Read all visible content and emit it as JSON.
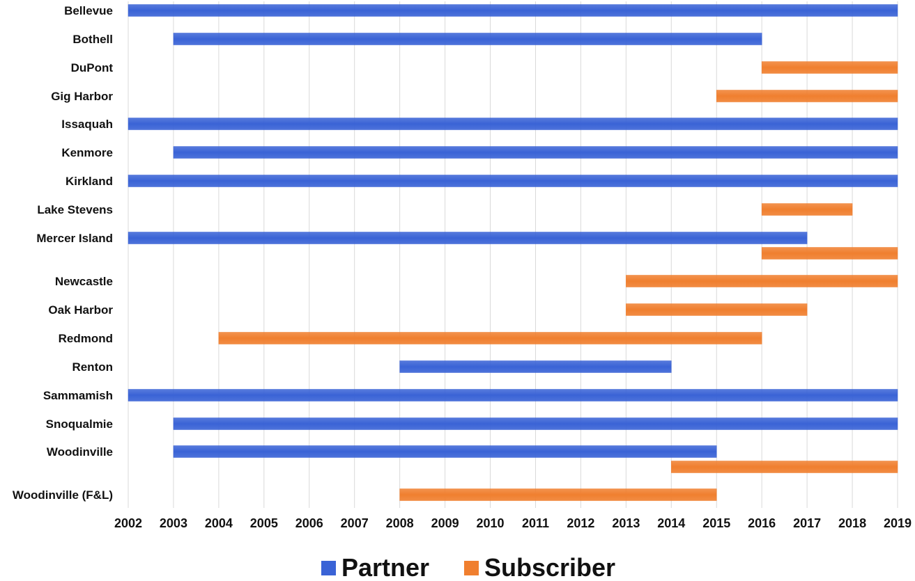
{
  "chart_data": {
    "type": "bar",
    "orientation": "horizontal-timeline",
    "xlim": [
      2002,
      2019
    ],
    "grid": true,
    "legend_position": "bottom-center",
    "categories": [
      "Bellevue",
      "Bothell",
      "DuPont",
      "Gig Harbor",
      "Issaquah",
      "Kenmore",
      "Kirkland",
      "Lake Stevens",
      "Mercer Island",
      "Newcastle",
      "Oak Harbor",
      "Redmond",
      "Renton",
      "Sammamish",
      "Snoqualmie",
      "Woodinville",
      "Woodinville (F&L)"
    ],
    "x_ticks": [
      "2002",
      "2003",
      "2004",
      "2005",
      "2006",
      "2007",
      "2008",
      "2009",
      "2010",
      "2011",
      "2012",
      "2013",
      "2014",
      "2015",
      "2016",
      "2017",
      "2018",
      "2019"
    ],
    "series": [
      {
        "name": "Partner",
        "color": "#3a63d6",
        "segments": [
          {
            "category": "Bellevue",
            "start": 2002,
            "end": 2019
          },
          {
            "category": "Bothell",
            "start": 2003,
            "end": 2016
          },
          {
            "category": "Issaquah",
            "start": 2002,
            "end": 2019
          },
          {
            "category": "Kenmore",
            "start": 2003,
            "end": 2019
          },
          {
            "category": "Kirkland",
            "start": 2002,
            "end": 2019
          },
          {
            "category": "Mercer Island",
            "start": 2002,
            "end": 2017
          },
          {
            "category": "Renton",
            "start": 2008,
            "end": 2014
          },
          {
            "category": "Sammamish",
            "start": 2002,
            "end": 2019
          },
          {
            "category": "Snoqualmie",
            "start": 2003,
            "end": 2019
          },
          {
            "category": "Woodinville",
            "start": 2003,
            "end": 2015
          }
        ]
      },
      {
        "name": "Subscriber",
        "color": "#f07f2f",
        "segments": [
          {
            "category": "DuPont",
            "start": 2016,
            "end": 2019
          },
          {
            "category": "Gig Harbor",
            "start": 2015,
            "end": 2019
          },
          {
            "category": "Lake Stevens",
            "start": 2016,
            "end": 2018
          },
          {
            "category": "Mercer Island",
            "start": 2016,
            "end": 2019
          },
          {
            "category": "Newcastle",
            "start": 2013,
            "end": 2019
          },
          {
            "category": "Oak Harbor",
            "start": 2013,
            "end": 2017
          },
          {
            "category": "Redmond",
            "start": 2004,
            "end": 2016
          },
          {
            "category": "Woodinville",
            "start": 2014,
            "end": 2019
          },
          {
            "category": "Woodinville (F&L)",
            "start": 2008,
            "end": 2015
          }
        ]
      }
    ]
  }
}
